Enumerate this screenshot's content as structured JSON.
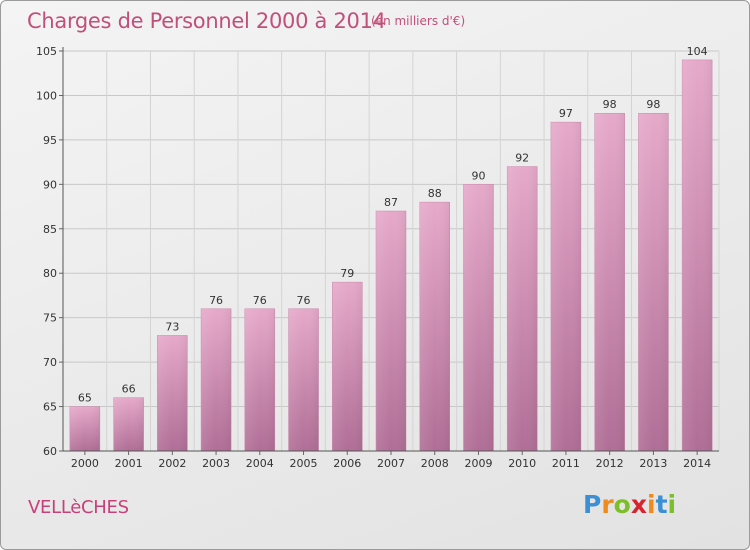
{
  "chart_data": {
    "type": "bar",
    "title": "Charges de Personnel 2000 à 2014",
    "subtitle": "(en milliers d'€)",
    "categories": [
      "2000",
      "2001",
      "2002",
      "2003",
      "2004",
      "2005",
      "2006",
      "2007",
      "2008",
      "2009",
      "2010",
      "2011",
      "2012",
      "2013",
      "2014"
    ],
    "values": [
      65,
      66,
      73,
      76,
      76,
      76,
      79,
      87,
      88,
      90,
      92,
      97,
      98,
      98,
      104
    ],
    "value_labels": [
      "65",
      "66",
      "73",
      "76",
      "76",
      "76",
      "79",
      "87",
      "88",
      "90",
      "92",
      "97",
      "98",
      "98",
      "104"
    ],
    "ylim": [
      60,
      105
    ],
    "yticks": [
      60,
      65,
      70,
      75,
      80,
      85,
      90,
      95,
      100,
      105
    ],
    "ytick_labels": [
      "60",
      "65",
      "70",
      "75",
      "80",
      "85",
      "90",
      "95",
      "100",
      "105"
    ],
    "grid": true,
    "bar_color_top": "#e6a9ca",
    "bar_color_bottom": "#b06e96"
  },
  "place_name": "VELLèCHES",
  "logo": {
    "letters": [
      "P",
      "r",
      "o",
      "x",
      "i",
      "t",
      "i"
    ],
    "colors": [
      "#3b8fd4",
      "#f08a1c",
      "#7cbf2a",
      "#d8242e",
      "#f08a1c",
      "#3b8fd4",
      "#7cbf2a"
    ]
  },
  "colors": {
    "title": "#c0507a",
    "place": "#c8407a"
  }
}
